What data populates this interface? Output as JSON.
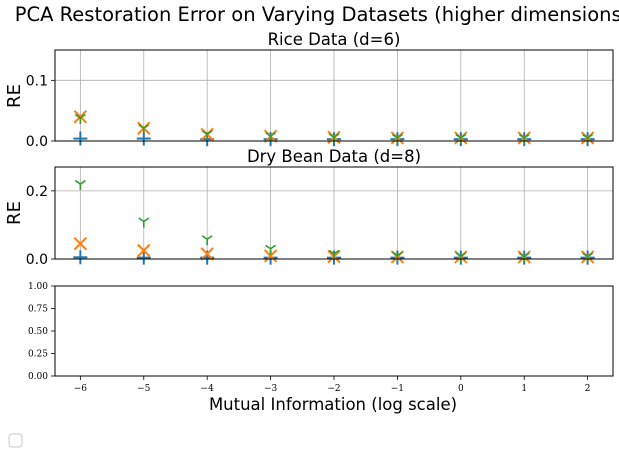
{
  "figure_title": "PCA Restoration Error on Varying Datasets (higher dimensions)",
  "shared_xlabel": "Mutual Information (log scale)",
  "colors": {
    "plus": "#1f77b4",
    "x": "#ff7f0e",
    "tri": "#2ca02c",
    "grid": "#b0b0b0"
  },
  "chart_data": [
    {
      "type": "scatter",
      "title": "Rice Data (d=6)",
      "ylabel": "RE",
      "xlim": [
        -6.4,
        2.4
      ],
      "ylim": [
        0,
        0.15
      ],
      "xticks": [
        -6,
        -5,
        -4,
        -3,
        -2,
        -1,
        0,
        1,
        2
      ],
      "yticks": [
        0.0,
        0.1
      ],
      "ytick_labels": [
        "0.0",
        "0.1"
      ],
      "grid": true,
      "series": [
        {
          "marker": "plus",
          "x": [
            -6,
            -5,
            -4,
            -3,
            -2,
            -1,
            0,
            1,
            2
          ],
          "y": [
            0.004,
            0.004,
            0.003,
            0.003,
            0.003,
            0.003,
            0.003,
            0.003,
            0.003
          ]
        },
        {
          "marker": "x",
          "x": [
            -6,
            -5,
            -4,
            -3,
            -2,
            -1,
            0,
            1,
            2
          ],
          "y": [
            0.04,
            0.021,
            0.011,
            0.008,
            0.006,
            0.005,
            0.005,
            0.005,
            0.005
          ]
        },
        {
          "marker": "tri",
          "x": [
            -6,
            -5,
            -4,
            -3,
            -2,
            -1,
            0,
            1,
            2
          ],
          "y": [
            0.038,
            0.021,
            0.011,
            0.008,
            0.006,
            0.005,
            0.005,
            0.005,
            0.005
          ]
        }
      ]
    },
    {
      "type": "scatter",
      "title": "Dry Bean Data (d=8)",
      "ylabel": "RE",
      "xlim": [
        -6.4,
        2.4
      ],
      "ylim": [
        0,
        0.27
      ],
      "xticks": [
        -6,
        -5,
        -4,
        -3,
        -2,
        -1,
        0,
        1,
        2
      ],
      "yticks": [
        0.0,
        0.2
      ],
      "ytick_labels": [
        "0.0",
        "0.2"
      ],
      "grid": true,
      "series": [
        {
          "marker": "plus",
          "x": [
            -6,
            -5,
            -4,
            -3,
            -2,
            -1,
            0,
            1,
            2
          ],
          "y": [
            0.005,
            0.004,
            0.004,
            0.004,
            0.004,
            0.004,
            0.004,
            0.004,
            0.004
          ]
        },
        {
          "marker": "x",
          "x": [
            -6,
            -5,
            -4,
            -3,
            -2,
            -1,
            0,
            1,
            2
          ],
          "y": [
            0.045,
            0.025,
            0.015,
            0.009,
            0.007,
            0.006,
            0.006,
            0.006,
            0.006
          ]
        },
        {
          "marker": "tri",
          "x": [
            -6,
            -5,
            -4,
            -3,
            -2,
            -1,
            0,
            1,
            2
          ],
          "y": [
            0.22,
            0.11,
            0.058,
            0.03,
            0.015,
            0.01,
            0.008,
            0.007,
            0.007
          ]
        }
      ]
    },
    {
      "type": "scatter",
      "title": "",
      "ylabel": "",
      "xlim": [
        -6.4,
        2.4
      ],
      "ylim": [
        0,
        1
      ],
      "xticks": [
        -6,
        -5,
        -4,
        -3,
        -2,
        -1,
        0,
        1,
        2
      ],
      "xtick_labels": [
        "−6",
        "−5",
        "−4",
        "−3",
        "−2",
        "−1",
        "0",
        "1",
        "2"
      ],
      "yticks": [
        0.0,
        0.25,
        0.5,
        0.75,
        1.0
      ],
      "ytick_labels": [
        "0.00",
        "0.25",
        "0.50",
        "0.75",
        "1.00"
      ],
      "grid": false,
      "series": []
    }
  ]
}
